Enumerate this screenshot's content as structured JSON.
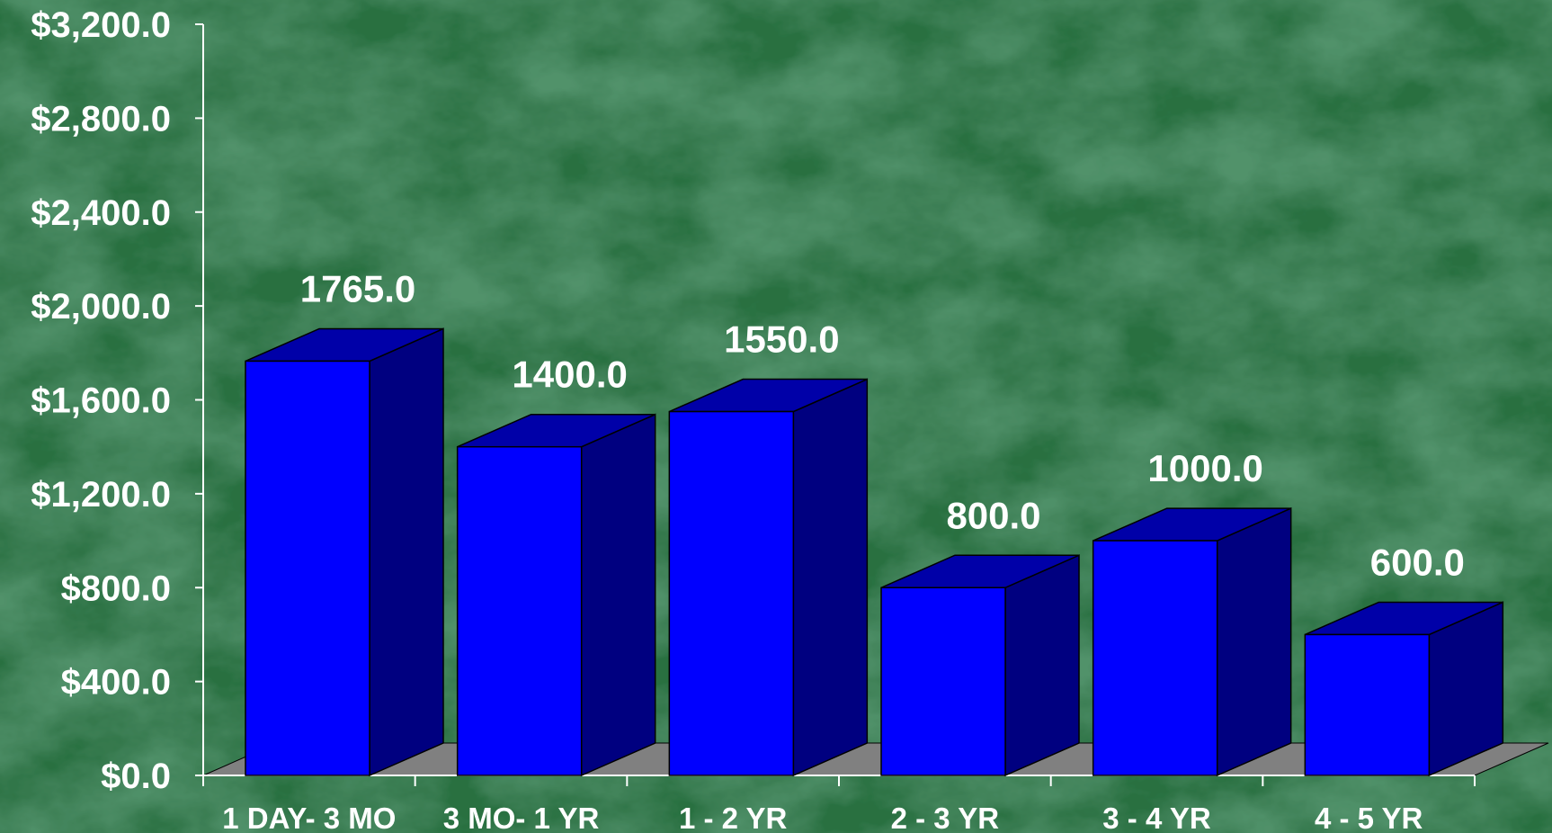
{
  "chart_data": {
    "type": "bar",
    "title": "",
    "xlabel": "",
    "ylabel": "",
    "ylim": [
      0,
      3200
    ],
    "y_ticks": [
      "$0.0",
      "$400.0",
      "$800.0",
      "$1,200.0",
      "$1,600.0",
      "$2,000.0",
      "$2,400.0",
      "$2,800.0",
      "$3,200.0"
    ],
    "y_tick_values": [
      0,
      400,
      800,
      1200,
      1600,
      2000,
      2400,
      2800,
      3200
    ],
    "categories": [
      "1 DAY- 3 MO",
      "3 MO- 1 YR",
      "1 - 2 YR",
      "2 - 3 YR",
      "3 - 4 YR",
      "4 - 5 YR"
    ],
    "values": [
      1765,
      1400,
      1550,
      800,
      1000,
      600
    ],
    "data_labels": [
      "1765.0",
      "1400.0",
      "1550.0",
      "800.0",
      "1000.0",
      "600.0"
    ],
    "grid": false,
    "legend": "none",
    "style": "3d",
    "colors": {
      "bar_front": "#0000ff",
      "bar_side": "#000080",
      "bar_top": "#0000a8",
      "floor": "#808080",
      "background": "#1b5a30",
      "text": "#ffffff"
    }
  }
}
